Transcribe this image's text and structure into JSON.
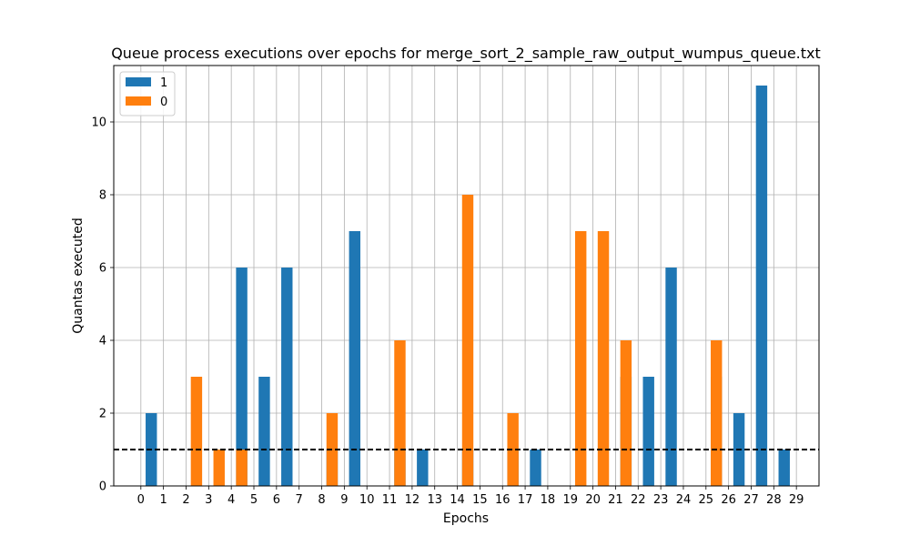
{
  "chart_data": {
    "type": "bar",
    "title": "Queue process executions over epochs for merge_sort_2_sample_raw_output_wumpus_queue.txt",
    "xlabel": "Epochs",
    "ylabel": "Quantas executed",
    "x": [
      0,
      1,
      2,
      3,
      4,
      5,
      6,
      7,
      8,
      9,
      10,
      11,
      12,
      13,
      14,
      15,
      16,
      17,
      18,
      19,
      20,
      21,
      22,
      23,
      24,
      25,
      26,
      27,
      28,
      29
    ],
    "xlim": [
      -1.2,
      30
    ],
    "ylim": [
      0,
      11.55
    ],
    "yticks": [
      0,
      2,
      4,
      6,
      8,
      10
    ],
    "grid": true,
    "legend_position": "top-left",
    "reference_line": {
      "y": 1,
      "style": "dashed",
      "color": "#000000"
    },
    "series": [
      {
        "name": "1",
        "color": "#1f77b4",
        "values": [
          2,
          0,
          0,
          0,
          6,
          3,
          6,
          0,
          1,
          7,
          0,
          1,
          1,
          0,
          1,
          0,
          1,
          1,
          0,
          0,
          0,
          3,
          3,
          6,
          0,
          3,
          2,
          11,
          1,
          0
        ]
      },
      {
        "name": "0",
        "color": "#ff7f0e",
        "values": [
          0,
          0,
          3,
          1,
          1,
          0,
          0,
          0,
          2,
          0,
          0,
          4,
          0,
          0,
          8,
          0,
          2,
          0,
          0,
          7,
          7,
          4,
          0,
          0,
          0,
          4,
          0,
          0,
          0,
          0
        ]
      }
    ]
  }
}
